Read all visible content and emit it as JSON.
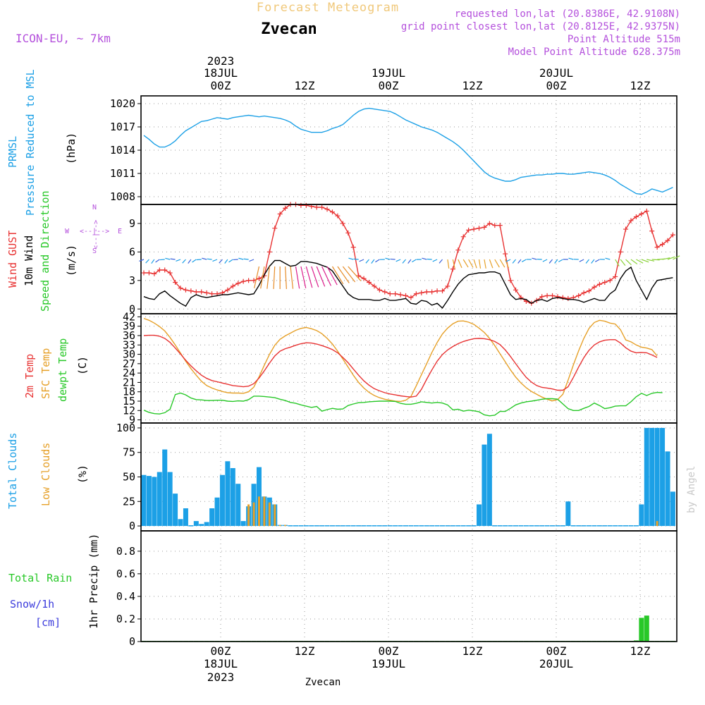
{
  "header": {
    "title": "Forecast Meteogram",
    "location": "Zvecan",
    "model": "ICON-EU, ~ 7km",
    "requested": "requested lon,lat (20.8386E, 42.9108N)",
    "gridpoint": "grid point closest lon,lat (20.8125E, 42.9375N)",
    "point_alt": "Point Altitude 515m",
    "model_alt": "Model Point Altitude 628.375m",
    "footer_location": "Zvecan",
    "watermark": "by Angel"
  },
  "time_axis": {
    "top_year": "2023",
    "top_dates": [
      "18JUL",
      "19JUL",
      "20JUL"
    ],
    "tick_labels": [
      "00Z",
      "12Z",
      "00Z",
      "12Z",
      "00Z",
      "12Z"
    ],
    "bottom_dates": [
      "18JUL",
      "19JUL",
      "20JUL"
    ],
    "bottom_year": "2023"
  },
  "colors": {
    "pressure": "#1ca0e6",
    "gust": "#e83232",
    "wind": "#000000",
    "temp2m": "#e83232",
    "sfc": "#e6a028",
    "dewpt": "#28c828",
    "clouds_total": "#1ca0e6",
    "clouds_low": "#e6a028",
    "rain": "#28c828",
    "snow": "#3c3cdc",
    "header_purple": "#b450dc",
    "title_orange": "#f0c87a"
  },
  "panel_labels": {
    "pressure": {
      "name1": "PRMSL",
      "name2": "Pressure Reduced to MSL",
      "unit": "(hPa)"
    },
    "wind": {
      "name1": "Wind GUST",
      "name2": "10m Wind",
      "name3": "Speed and Direction",
      "unit": "(m/s)",
      "compass_w": "W",
      "compass_e": "E",
      "compass_n": "N",
      "compass_s": "S",
      "compass_we": "<--|-->",
      "compass_ns": "<--|-->"
    },
    "temp": {
      "name1": "2m Temp",
      "name2": "SFC Temp",
      "name3": "dewpt Temp",
      "unit": "(C)"
    },
    "clouds": {
      "name1": "Total Clouds",
      "name2": "Low Clouds",
      "unit": "(%)"
    },
    "precip": {
      "name1": "Total  Rain",
      "name2": "Snow/1h",
      "name3": "[cm]",
      "unit": "1hr Precip (mm)"
    }
  },
  "chart_data": [
    {
      "type": "line",
      "name": "PRMSL",
      "ylim": [
        1007,
        1021
      ],
      "yticks": [
        "1008",
        "1011",
        "1014",
        "1017",
        "1020"
      ],
      "series": [
        {
          "name": "PRMSL",
          "values": [
            1015.9,
            1015.4,
            1014.8,
            1014.4,
            1014.4,
            1014.7,
            1015.2,
            1015.9,
            1016.5,
            1016.9,
            1017.3,
            1017.7,
            1017.8,
            1018.0,
            1018.2,
            1018.1,
            1018.0,
            1018.2,
            1018.3,
            1018.4,
            1018.5,
            1018.4,
            1018.3,
            1018.4,
            1018.3,
            1018.2,
            1018.1,
            1017.9,
            1017.6,
            1017.1,
            1016.7,
            1016.5,
            1016.3,
            1016.3,
            1016.3,
            1016.5,
            1016.8,
            1017.0,
            1017.3,
            1017.9,
            1018.5,
            1019.0,
            1019.3,
            1019.4,
            1019.3,
            1019.2,
            1019.1,
            1019.0,
            1018.7,
            1018.3,
            1017.9,
            1017.6,
            1017.3,
            1017.0,
            1016.8,
            1016.6,
            1016.3,
            1015.9,
            1015.5,
            1015.1,
            1014.6,
            1014.0,
            1013.3,
            1012.6,
            1011.9,
            1011.2,
            1010.7,
            1010.4,
            1010.2,
            1010.0,
            1010.0,
            1010.2,
            1010.5,
            1010.6,
            1010.7,
            1010.8,
            1010.8,
            1010.9,
            1010.9,
            1011.0,
            1011.0,
            1010.9,
            1010.9,
            1011.0,
            1011.1,
            1011.2,
            1011.1,
            1011.0,
            1010.8,
            1010.5,
            1010.1,
            1009.6,
            1009.2,
            1008.8,
            1008.4,
            1008.3,
            1008.6,
            1009.0,
            1008.8,
            1008.6,
            1008.9,
            1009.2
          ]
        }
      ]
    },
    {
      "type": "line",
      "name": "Wind",
      "ylim": [
        -0.5,
        11
      ],
      "yticks": [
        "0",
        "3",
        "6",
        "9"
      ],
      "series": [
        {
          "name": "Wind GUST",
          "values": [
            3.8,
            3.8,
            3.7,
            4.1,
            4.1,
            3.8,
            2.8,
            2.2,
            2.0,
            1.9,
            1.8,
            1.8,
            1.7,
            1.6,
            1.6,
            1.7,
            2.0,
            2.4,
            2.7,
            2.9,
            3.0,
            3.0,
            3.2,
            3.5,
            6.0,
            8.5,
            10.0,
            10.6,
            11.0,
            11.0,
            10.9,
            10.9,
            10.8,
            10.7,
            10.7,
            10.5,
            10.2,
            9.8,
            9.0,
            8.0,
            6.5,
            3.5,
            3.2,
            2.8,
            2.4,
            2.0,
            1.8,
            1.6,
            1.6,
            1.5,
            1.4,
            1.2,
            1.6,
            1.7,
            1.8,
            1.8,
            1.9,
            1.9,
            2.4,
            4.2,
            6.2,
            7.6,
            8.3,
            8.4,
            8.5,
            8.6,
            9.0,
            8.8,
            8.8,
            5.8,
            3.0,
            2.0,
            1.2,
            0.8,
            0.6,
            0.9,
            1.3,
            1.4,
            1.4,
            1.3,
            1.2,
            1.1,
            1.2,
            1.4,
            1.7,
            1.9,
            2.3,
            2.6,
            2.8,
            3.0,
            3.4,
            6.0,
            8.4,
            9.3,
            9.7,
            10.0,
            10.3,
            8.2,
            6.5,
            6.8,
            7.2,
            7.8
          ]
        },
        {
          "name": "10m Wind",
          "values": [
            1.3,
            1.1,
            1.0,
            1.6,
            1.9,
            1.4,
            1.0,
            0.6,
            0.3,
            1.2,
            1.5,
            1.3,
            1.2,
            1.3,
            1.4,
            1.5,
            1.5,
            1.6,
            1.7,
            1.6,
            1.5,
            1.6,
            2.5,
            3.6,
            4.5,
            5.1,
            5.1,
            4.8,
            4.5,
            4.6,
            5.0,
            5.0,
            4.9,
            4.8,
            4.6,
            4.4,
            4.0,
            3.2,
            2.4,
            1.6,
            1.2,
            1.0,
            1.0,
            1.0,
            0.9,
            0.9,
            1.1,
            0.9,
            0.9,
            1.0,
            1.1,
            0.6,
            0.5,
            0.9,
            0.8,
            0.4,
            0.6,
            0.1,
            0.9,
            1.8,
            2.6,
            3.2,
            3.6,
            3.7,
            3.8,
            3.8,
            3.9,
            3.9,
            3.7,
            2.6,
            1.5,
            1.0,
            1.1,
            1.0,
            0.6,
            0.9,
            1.0,
            0.8,
            1.1,
            1.2,
            1.1,
            1.0,
            1.0,
            0.9,
            0.7,
            0.9,
            1.1,
            0.9,
            0.9,
            1.6,
            2.0,
            3.2,
            4.0,
            4.4,
            3.0,
            2.0,
            1.0,
            2.2,
            3.0,
            3.1,
            3.2,
            3.3
          ]
        }
      ]
    },
    {
      "type": "line",
      "name": "Temperature",
      "ylim": [
        8,
        43
      ],
      "yticks": [
        "9",
        "12",
        "15",
        "18",
        "21",
        "24",
        "27",
        "30",
        "33",
        "36",
        "39",
        "42"
      ],
      "series": [
        {
          "name": "2m Temp",
          "values": [
            36.0,
            36.1,
            36.1,
            35.8,
            35.1,
            33.8,
            32.0,
            30.1,
            28.1,
            26.3,
            24.7,
            23.3,
            22.3,
            21.6,
            21.2,
            20.8,
            20.4,
            20.0,
            19.8,
            19.6,
            19.8,
            20.6,
            22.4,
            24.7,
            27.2,
            29.5,
            31.0,
            31.8,
            32.3,
            32.9,
            33.4,
            33.7,
            33.6,
            33.3,
            32.8,
            32.2,
            31.5,
            30.5,
            29.0,
            27.3,
            25.3,
            23.3,
            21.5,
            20.1,
            19.0,
            18.3,
            17.7,
            17.3,
            17.0,
            16.7,
            16.5,
            16.3,
            16.6,
            18.8,
            22.0,
            25.0,
            27.8,
            29.9,
            31.4,
            32.5,
            33.4,
            34.1,
            34.6,
            35.0,
            35.1,
            35.0,
            34.7,
            34.1,
            33.1,
            31.4,
            29.3,
            27.0,
            24.7,
            22.6,
            21.1,
            20.0,
            19.4,
            19.2,
            18.9,
            18.5,
            18.5,
            19.6,
            22.6,
            25.9,
            28.9,
            31.3,
            33.0,
            34.0,
            34.5,
            34.7,
            34.7,
            33.6,
            32.1,
            31.0,
            30.5,
            30.6,
            30.5,
            29.8,
            29.0
          ]
        },
        {
          "name": "SFC Temp",
          "values": [
            41.5,
            40.9,
            40.0,
            38.9,
            37.5,
            35.4,
            33.0,
            30.4,
            27.8,
            25.4,
            23.3,
            21.4,
            20.0,
            19.2,
            18.6,
            18.1,
            17.7,
            17.6,
            17.6,
            17.5,
            18.0,
            19.5,
            22.8,
            26.5,
            30.0,
            32.9,
            34.8,
            35.9,
            36.8,
            37.7,
            38.3,
            38.6,
            38.2,
            37.6,
            36.6,
            35.1,
            33.3,
            31.0,
            28.5,
            25.9,
            23.3,
            21.0,
            19.2,
            17.8,
            16.8,
            16.1,
            15.6,
            15.3,
            15.0,
            14.9,
            15.3,
            16.5,
            19.9,
            23.5,
            27.0,
            30.6,
            33.8,
            36.5,
            38.4,
            39.8,
            40.6,
            40.7,
            40.3,
            39.6,
            38.4,
            37.0,
            35.1,
            32.8,
            30.2,
            27.6,
            25.0,
            22.7,
            20.8,
            19.3,
            18.1,
            17.2,
            16.3,
            15.6,
            15.1,
            15.5,
            17.2,
            21.7,
            26.6,
            31.1,
            35.1,
            38.3,
            40.2,
            40.9,
            40.6,
            40.0,
            39.7,
            37.9,
            34.6,
            34.0,
            33.0,
            32.3,
            32.0,
            31.5,
            29.5
          ]
        },
        {
          "name": "dewpt Temp",
          "values": [
            12.1,
            11.4,
            11.0,
            10.9,
            11.3,
            12.4,
            17.1,
            17.6,
            17.0,
            16.0,
            15.5,
            15.4,
            15.2,
            15.2,
            15.3,
            15.3,
            15.0,
            14.9,
            15.1,
            15.0,
            15.5,
            16.6,
            16.6,
            16.5,
            16.3,
            16.1,
            15.6,
            15.2,
            14.6,
            14.3,
            13.8,
            13.4,
            13.0,
            13.3,
            11.8,
            12.3,
            12.7,
            12.4,
            12.5,
            13.6,
            14.1,
            14.5,
            14.6,
            14.8,
            14.9,
            15.0,
            15.0,
            15.0,
            14.9,
            14.3,
            14.0,
            14.0,
            14.3,
            14.8,
            14.6,
            14.4,
            14.6,
            14.4,
            13.8,
            12.2,
            12.4,
            11.8,
            12.1,
            11.9,
            11.6,
            10.6,
            10.3,
            10.5,
            11.7,
            11.7,
            12.7,
            13.8,
            14.4,
            14.8,
            15.0,
            15.3,
            15.6,
            15.8,
            15.8,
            15.6,
            14.1,
            12.6,
            12.0,
            12.0,
            12.7,
            13.3,
            14.4,
            13.6,
            12.6,
            12.9,
            13.4,
            13.5,
            13.5,
            14.8,
            16.4,
            17.5,
            16.8,
            17.5,
            17.8,
            17.7
          ]
        }
      ]
    },
    {
      "type": "bar",
      "name": "Clouds",
      "ylim": [
        -5,
        105
      ],
      "yticks": [
        "0",
        "25",
        "50",
        "75",
        "100"
      ],
      "series": [
        {
          "name": "Total Clouds",
          "values": [
            52,
            51,
            50,
            55,
            78,
            55,
            33,
            7,
            18,
            0,
            5,
            2,
            4,
            18,
            29,
            52,
            66,
            59,
            43,
            5,
            20,
            43,
            60,
            30,
            29,
            22,
            1,
            1,
            0,
            0,
            0,
            0,
            0,
            0,
            0,
            0,
            0,
            0,
            0,
            0,
            0,
            0,
            0,
            0,
            0,
            0,
            0,
            0,
            0,
            0,
            0,
            0,
            0,
            0,
            0,
            0,
            0,
            0,
            0,
            0,
            0,
            0,
            0,
            0,
            22,
            83,
            94,
            0,
            0,
            0,
            0,
            0,
            0,
            0,
            0,
            0,
            0,
            0,
            0,
            0,
            0,
            25,
            0,
            0,
            0,
            0,
            0,
            0,
            0,
            0,
            0,
            0,
            0,
            0,
            0,
            22,
            100,
            100,
            100,
            100,
            76,
            35
          ]
        },
        {
          "name": "Low Clouds",
          "values": [
            0,
            0,
            0,
            0,
            0,
            0,
            0,
            0,
            0,
            0,
            0,
            0,
            0,
            0,
            0,
            0,
            0,
            0,
            0,
            0,
            22,
            24,
            30,
            30,
            24,
            22,
            1,
            1,
            0,
            0,
            0,
            0,
            0,
            0,
            0,
            0,
            0,
            0,
            0,
            0,
            0,
            0,
            0,
            0,
            0,
            0,
            0,
            0,
            0,
            0,
            0,
            0,
            0,
            0,
            0,
            0,
            0,
            0,
            0,
            0,
            0,
            0,
            0,
            0,
            0,
            0,
            0,
            0,
            0,
            0,
            0,
            0,
            0,
            0,
            0,
            0,
            0,
            0,
            0,
            0,
            0,
            0,
            0,
            0,
            0,
            0,
            0,
            0,
            0,
            0,
            0,
            0,
            0,
            0,
            0,
            0,
            0,
            0,
            5,
            0,
            0,
            0
          ]
        }
      ]
    },
    {
      "type": "bar",
      "name": "Precipitation",
      "ylim": [
        0,
        0.98
      ],
      "yticks": [
        "0",
        "0.2",
        "0.4",
        "0.6",
        "0.8"
      ],
      "series": [
        {
          "name": "Total Rain",
          "values": [
            0,
            0,
            0,
            0,
            0,
            0,
            0,
            0,
            0,
            0,
            0,
            0,
            0,
            0,
            0,
            0,
            0,
            0,
            0,
            0,
            0,
            0,
            0,
            0,
            0,
            0,
            0,
            0,
            0,
            0,
            0,
            0,
            0,
            0,
            0,
            0,
            0,
            0,
            0,
            0,
            0,
            0,
            0,
            0,
            0,
            0,
            0,
            0,
            0,
            0,
            0,
            0,
            0,
            0,
            0,
            0,
            0,
            0,
            0,
            0,
            0,
            0,
            0,
            0,
            0,
            0,
            0,
            0,
            0,
            0,
            0,
            0,
            0,
            0,
            0,
            0,
            0,
            0,
            0,
            0,
            0,
            0,
            0,
            0,
            0,
            0,
            0,
            0,
            0,
            0,
            0,
            0,
            0,
            0,
            0.01,
            0.21,
            0.23,
            0,
            0,
            0,
            0,
            0
          ]
        }
      ]
    }
  ]
}
